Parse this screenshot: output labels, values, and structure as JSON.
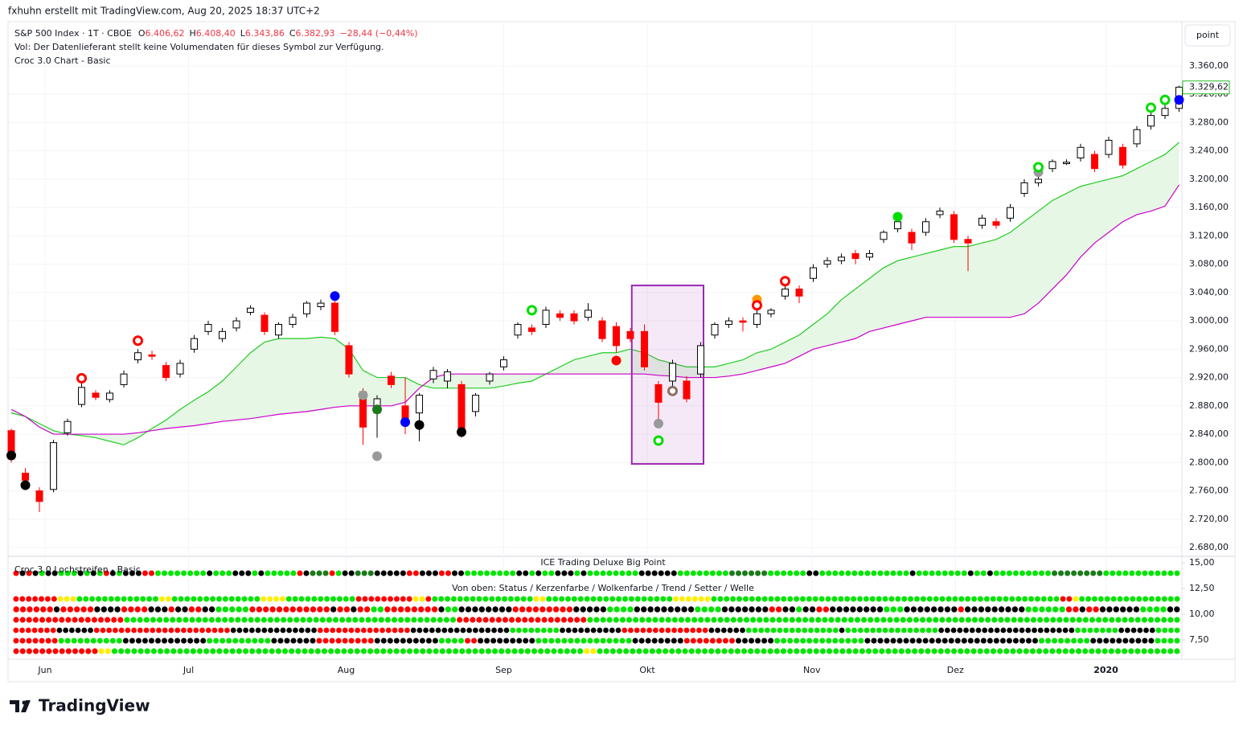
{
  "header": {
    "attribution": "fxhuhn erstellt mit TradingView.com, Aug 20, 2025 18:37 UTC+2",
    "button": "point",
    "brand": "TradingView"
  },
  "chart_data": [
    {
      "type": "candlestick",
      "title": "S&P 500 Index · 1T · CBOE",
      "ohlc_legend": [
        {
          "label": "O",
          "value": "6.406,62"
        },
        {
          "label": "H",
          "value": "6.408,40"
        },
        {
          "label": "L",
          "value": "6.343,86"
        },
        {
          "label": "C",
          "value": "6.382,93"
        }
      ],
      "change": "−28,44 (−0,44%)",
      "notes": [
        "Vol: Der Datenlieferant stellt keine Volumendaten für dieses Symbol zur Verfügung.",
        "Croc 3.0 Chart - Basic"
      ],
      "up_color": "#ffffff",
      "down_color": "#ff0000",
      "border_color": "#000000",
      "grid": true,
      "xlim": [
        -0.23,
        83.2
      ],
      "ylim": [
        2669.8,
        3422.4
      ],
      "xticks": [
        {
          "value": 2.4,
          "label": "Jun"
        },
        {
          "value": 12.6,
          "label": "Jul"
        },
        {
          "value": 23.8,
          "label": "Aug"
        },
        {
          "value": 35,
          "label": "Sep"
        },
        {
          "value": 45.2,
          "label": "Okt"
        },
        {
          "value": 56.9,
          "label": "Nov"
        },
        {
          "value": 67.1,
          "label": "Dez"
        },
        {
          "value": 77.8,
          "label": "2020",
          "bold": true
        }
      ],
      "yticks": [
        {
          "value": 3360,
          "label": "3.360,00"
        },
        {
          "value": 3320,
          "label": "3.320,00"
        },
        {
          "value": 3280,
          "label": "3.280,00"
        },
        {
          "value": 3240,
          "label": "3.240,00"
        },
        {
          "value": 3200,
          "label": "3.200,00"
        },
        {
          "value": 3160,
          "label": "3.160,00"
        },
        {
          "value": 3120,
          "label": "3.120,00"
        },
        {
          "value": 3080,
          "label": "3.080,00"
        },
        {
          "value": 3040,
          "label": "3.040,00"
        },
        {
          "value": 3000,
          "label": "3.000,00"
        },
        {
          "value": 2960,
          "label": "2.960,00"
        },
        {
          "value": 2920,
          "label": "2.920,00"
        },
        {
          "value": 2880,
          "label": "2.880,00"
        },
        {
          "value": 2840,
          "label": "2.840,00"
        },
        {
          "value": 2800,
          "label": "2.800,00"
        },
        {
          "value": 2760,
          "label": "2.760,00"
        },
        {
          "value": 2720,
          "label": "2.720,00"
        },
        {
          "value": 2680,
          "label": "2.680,00"
        }
      ],
      "last_price": {
        "value": 3329.62,
        "label": "3.329,62",
        "color": "#22bb22"
      },
      "ohlc": [
        [
          2845,
          2848,
          2800,
          2805
        ],
        [
          2785,
          2792,
          2765,
          2775
        ],
        [
          2760,
          2765,
          2730,
          2745
        ],
        [
          2762,
          2832,
          2758,
          2828
        ],
        [
          2842,
          2862,
          2838,
          2858
        ],
        [
          2882,
          2912,
          2878,
          2906
        ],
        [
          2898,
          2902,
          2888,
          2892
        ],
        [
          2889,
          2902,
          2885,
          2898
        ],
        [
          2910,
          2930,
          2906,
          2925
        ],
        [
          2945,
          2960,
          2940,
          2955
        ],
        [
          2952,
          2958,
          2945,
          2950
        ],
        [
          2937,
          2942,
          2915,
          2920
        ],
        [
          2925,
          2945,
          2920,
          2940
        ],
        [
          2960,
          2980,
          2955,
          2975
        ],
        [
          2985,
          3000,
          2980,
          2995
        ],
        [
          2975,
          2990,
          2970,
          2985
        ],
        [
          2990,
          3005,
          2985,
          3000
        ],
        [
          3012,
          3022,
          3008,
          3018
        ],
        [
          3008,
          3012,
          2980,
          2985
        ],
        [
          2980,
          2998,
          2975,
          2995
        ],
        [
          2995,
          3010,
          2990,
          3005
        ],
        [
          3010,
          3028,
          3005,
          3025
        ],
        [
          3020,
          3030,
          3015,
          3025
        ],
        [
          3025,
          3030,
          2980,
          2985
        ],
        [
          2965,
          2970,
          2920,
          2925
        ],
        [
          2900,
          2905,
          2825,
          2850
        ],
        [
          2870,
          2895,
          2835,
          2890
        ],
        [
          2922,
          2928,
          2905,
          2910
        ],
        [
          2880,
          2920,
          2840,
          2860
        ],
        [
          2870,
          2898,
          2830,
          2895
        ],
        [
          2918,
          2935,
          2912,
          2930
        ],
        [
          2915,
          2932,
          2905,
          2928
        ],
        [
          2910,
          2915,
          2835,
          2845
        ],
        [
          2872,
          2898,
          2865,
          2895
        ],
        [
          2915,
          2928,
          2910,
          2925
        ],
        [
          2935,
          2950,
          2930,
          2945
        ],
        [
          2980,
          2998,
          2975,
          2995
        ],
        [
          2990,
          2995,
          2980,
          2985
        ],
        [
          2995,
          3020,
          2990,
          3015
        ],
        [
          3010,
          3015,
          3000,
          3005
        ],
        [
          3010,
          3015,
          2995,
          3000
        ],
        [
          3005,
          3025,
          3000,
          3015
        ],
        [
          3000,
          3005,
          2970,
          2975
        ],
        [
          2992,
          2998,
          2955,
          2965
        ],
        [
          2985,
          2990,
          2970,
          2975
        ],
        [
          2985,
          2995,
          2930,
          2935
        ],
        [
          2910,
          2915,
          2860,
          2885
        ],
        [
          2915,
          2945,
          2908,
          2940
        ],
        [
          2915,
          2922,
          2885,
          2890
        ],
        [
          2925,
          2970,
          2920,
          2965
        ],
        [
          2980,
          2998,
          2975,
          2995
        ],
        [
          2995,
          3005,
          2990,
          3000
        ],
        [
          3000,
          3005,
          2985,
          2998
        ],
        [
          2995,
          3025,
          2990,
          3010
        ],
        [
          3010,
          3018,
          3005,
          3015
        ],
        [
          3035,
          3050,
          3030,
          3045
        ],
        [
          3045,
          3050,
          3025,
          3035
        ],
        [
          3060,
          3080,
          3055,
          3075
        ],
        [
          3080,
          3090,
          3075,
          3085
        ],
        [
          3085,
          3095,
          3080,
          3090
        ],
        [
          3095,
          3100,
          3080,
          3088
        ],
        [
          3090,
          3100,
          3085,
          3095
        ],
        [
          3115,
          3128,
          3110,
          3125
        ],
        [
          3130,
          3145,
          3125,
          3140
        ],
        [
          3125,
          3130,
          3100,
          3110
        ],
        [
          3125,
          3145,
          3120,
          3140
        ],
        [
          3150,
          3160,
          3145,
          3155
        ],
        [
          3150,
          3155,
          3110,
          3115
        ],
        [
          3115,
          3120,
          3070,
          3110
        ],
        [
          3135,
          3150,
          3130,
          3145
        ],
        [
          3140,
          3145,
          3130,
          3135
        ],
        [
          3145,
          3165,
          3140,
          3160
        ],
        [
          3180,
          3200,
          3175,
          3195
        ],
        [
          3195,
          3205,
          3190,
          3200
        ],
        [
          3215,
          3228,
          3210,
          3225
        ],
        [
          3222,
          3228,
          3220,
          3224
        ],
        [
          3230,
          3250,
          3225,
          3245
        ],
        [
          3235,
          3240,
          3210,
          3215
        ],
        [
          3235,
          3260,
          3230,
          3255
        ],
        [
          3245,
          3250,
          3215,
          3220
        ],
        [
          3250,
          3275,
          3245,
          3270
        ],
        [
          3275,
          3295,
          3270,
          3290
        ],
        [
          3290,
          3305,
          3285,
          3300
        ],
        [
          3300,
          3332,
          3295,
          3330
        ]
      ],
      "series": [
        {
          "color": "#22cc22",
          "values": [
            2870,
            2865,
            2855,
            2845,
            2840,
            2838,
            2835,
            2830,
            2825,
            2835,
            2848,
            2860,
            2875,
            2888,
            2900,
            2915,
            2935,
            2955,
            2970,
            2975,
            2975,
            2975,
            2977,
            2975,
            2960,
            2930,
            2920,
            2920,
            2920,
            2910,
            2905,
            2905,
            2905,
            2905,
            2905,
            2908,
            2912,
            2915,
            2925,
            2935,
            2945,
            2950,
            2955,
            2955,
            2960,
            2955,
            2945,
            2940,
            2935,
            2935,
            2935,
            2940,
            2945,
            2955,
            2960,
            2970,
            2980,
            2995,
            3010,
            3030,
            3045,
            3060,
            3075,
            3085,
            3090,
            3095,
            3100,
            3105,
            3105,
            3110,
            3115,
            3125,
            3140,
            3155,
            3170,
            3180,
            3190,
            3195,
            3200,
            3205,
            3215,
            3225,
            3235,
            3252
          ]
        },
        {
          "color": "#cc00cc",
          "values": [
            2875,
            2865,
            2850,
            2840,
            2840,
            2840,
            2840,
            2840,
            2840,
            2842,
            2845,
            2848,
            2850,
            2852,
            2855,
            2858,
            2860,
            2862,
            2865,
            2868,
            2870,
            2872,
            2875,
            2878,
            2880,
            2880,
            2880,
            2880,
            2885,
            2905,
            2920,
            2925,
            2925,
            2925,
            2925,
            2925,
            2925,
            2925,
            2925,
            2925,
            2925,
            2925,
            2925,
            2925,
            2925,
            2925,
            2923,
            2922,
            2920,
            2920,
            2920,
            2922,
            2925,
            2930,
            2935,
            2940,
            2950,
            2960,
            2965,
            2970,
            2975,
            2985,
            2990,
            2995,
            3000,
            3005,
            3005,
            3005,
            3005,
            3005,
            3005,
            3005,
            3010,
            3025,
            3045,
            3065,
            3090,
            3110,
            3125,
            3140,
            3150,
            3155,
            3162,
            3192
          ]
        }
      ],
      "cloud_color": "#e6f7e6",
      "markers": [
        {
          "x": 0,
          "y": 2810,
          "color": "#000000",
          "style": "dot"
        },
        {
          "x": 1,
          "y": 2768,
          "color": "#000000",
          "style": "dot"
        },
        {
          "x": 5,
          "y": 2919,
          "color": "#ff0000",
          "style": "ring"
        },
        {
          "x": 9,
          "y": 2972,
          "color": "#ff0000",
          "style": "ring"
        },
        {
          "x": 23,
          "y": 3035,
          "color": "#0000ff",
          "style": "dot"
        },
        {
          "x": 25,
          "y": 2895,
          "color": "#999999",
          "style": "dot"
        },
        {
          "x": 26,
          "y": 2809,
          "color": "#999999",
          "style": "dot"
        },
        {
          "x": 26,
          "y": 2875,
          "color": "#1b7a1b",
          "style": "dot"
        },
        {
          "x": 28,
          "y": 2857,
          "color": "#0000ff",
          "style": "dot"
        },
        {
          "x": 29,
          "y": 2853,
          "color": "#000000",
          "style": "dot"
        },
        {
          "x": 32,
          "y": 2843,
          "color": "#000000",
          "style": "dot"
        },
        {
          "x": 37,
          "y": 3015,
          "color": "#00dd00",
          "style": "ring"
        },
        {
          "x": 43,
          "y": 2944,
          "color": "#ff0000",
          "style": "dot"
        },
        {
          "x": 46,
          "y": 2831,
          "color": "#00dd00",
          "style": "ring"
        },
        {
          "x": 46,
          "y": 2855,
          "color": "#999999",
          "style": "dot"
        },
        {
          "x": 47,
          "y": 2901,
          "color": "#8d6e63",
          "style": "ring"
        },
        {
          "x": 53,
          "y": 3030,
          "color": "#ff9800",
          "style": "dot"
        },
        {
          "x": 53,
          "y": 3022,
          "color": "#ff0000",
          "style": "ring"
        },
        {
          "x": 55,
          "y": 3056,
          "color": "#ff0000",
          "style": "ring"
        },
        {
          "x": 63,
          "y": 3147,
          "color": "#00dd00",
          "style": "dot"
        },
        {
          "x": 73,
          "y": 3210,
          "color": "#999999",
          "style": "dot"
        },
        {
          "x": 73,
          "y": 3217,
          "color": "#00dd00",
          "style": "ring"
        },
        {
          "x": 81,
          "y": 3301,
          "color": "#00dd00",
          "style": "ring"
        },
        {
          "x": 82,
          "y": 3312,
          "color": "#00dd00",
          "style": "ring"
        },
        {
          "x": 83,
          "y": 3312,
          "color": "#0000ff",
          "style": "dot"
        }
      ],
      "highlight": {
        "x": [
          44.1,
          49.2
        ],
        "y": [
          3050,
          2798
        ],
        "color": "#9c27b0"
      }
    },
    {
      "type": "dot-matrix",
      "title": "ICE Trading Deluxe Big Point",
      "subtitle": "Von oben: Status / Kerzenfarbe / Wolkenfarbe / Trend / Setter / Welle",
      "overlay_label": "Croc 3.0 Lochstreifen - Basic",
      "ylim": [
        5.63,
        15.55
      ],
      "yticks": [
        {
          "value": 15,
          "label": "15,00"
        },
        {
          "value": 12.5,
          "label": "12,50"
        },
        {
          "value": 10,
          "label": "10,00"
        },
        {
          "value": 7.5,
          "label": "7,50"
        }
      ],
      "dot_colors": {
        "r": "#ff0000",
        "g": "#00e600",
        "k": "#000000",
        "y": "#ffee00",
        "d": "#1b7a1b"
      },
      "rows": [
        "rkrkgkkgggkgkgrkgkkkrrggggggggkgggkkkgkgggggrkdddrgkkdddkkkkkrrkkkrrkkggggggggkkgkggkkkgkggggggggkkkkkkggggggggddddddggggggkkggggggggggggggkggggggggkggkgggggggggddddddddgggggggggggg",
        "rrrrrrryyygggggggggggggyyggggggggggggggyyyygggggggggggrrrrrrrrryyrggggggggggggggggyyggggggggggggggggggggyyyyyygggggggggggggggggggggggggggggggggggggggggggggggggggggggrrygggggggggggggggg",
        "rrrrrrkrrrrrkkkkrrrrkkkrkkrrkkgggggrrrrrrrrrrrrkrrkrrggrrrrrrrrkggkkkkkkkkrrrrrrrrrkkkkkggggkkkkkkkkkggggkkkkkkkrrkkgkkrrkkkkkkkkgggkkkkkkkkrkkkkkkkkkggggggrrkrrkkkkkkggggkk",
        "rrrrrrrrrrrrrrrrrgggggggggggggggggggggggggggggggggggggggggggggggggggrrrrrrrrrrrrrrrrrrrrggggggggggggggggggggggggggggggggggggggggggggggggggggggggggggggggggggggggggggggggggggggggggg",
        "rrrrrrrkkkkkkrrrrrrrrrrrrrrrrrrrrrrkkkkkkkkkkkkkkrrrrrrrrrrrrrrrkkkkkkkkkkkkkkkkggggggggkkkkkkkkkkrrrrrrrrrrrrrrkkkkkkgggggggggggggggkgggggggggggggggkkkkkkkkkkkkkkkkkkkkkkgggggggkkkkkkgggg",
        "rrrrrrrggggggggggkkkkkkkkkkkkkggggggggggkkkkkkkrrrrrrrrrkkkkkkkkkkggggrrkkkkkkkkkgggggggggggggggkkkkkkkkrrrrrrrrkkkkkkggggggggggggggkkkkkkkkkkkkkkkkkkkkkkkkkkkggggggggkkkkkkkkkkgggg",
        "rrrrrrrrrrrrryyggggggggggggggggggggggggggggggggggggggggggggggggggggggggggggggggggggggggyyggggggggggggggggggggggggggggggggggggggggggggggggggggggggggggggggggggggggggggggggggggggggg"
      ]
    }
  ]
}
